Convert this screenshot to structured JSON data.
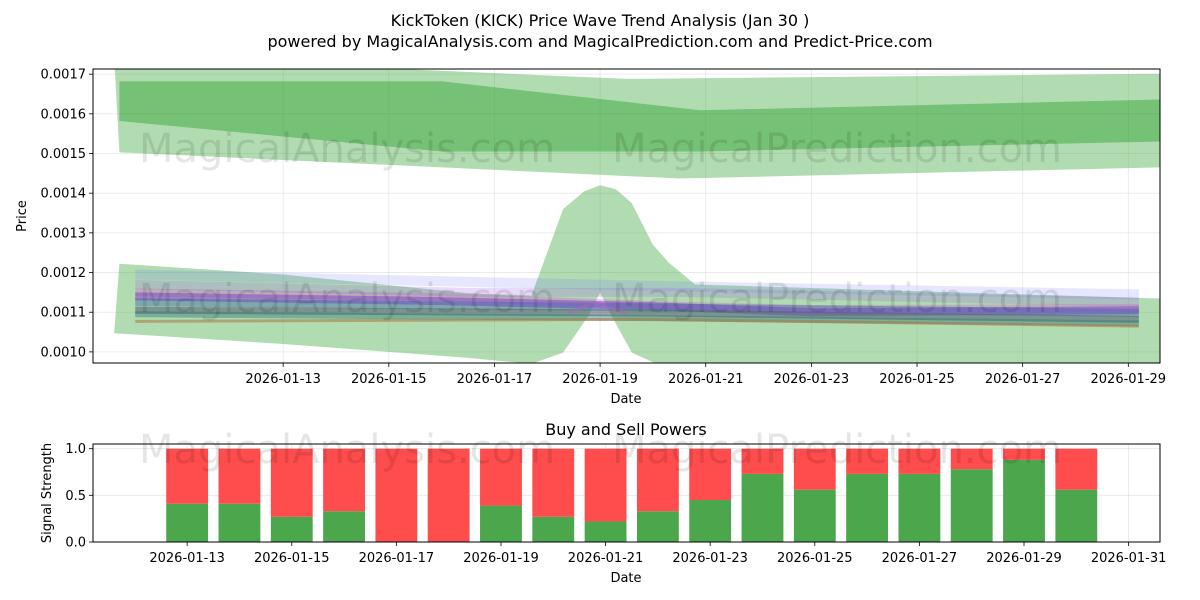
{
  "title_line1": "KickToken (KICK) Price Wave Trend Analysis (Jan 30 )",
  "title_line2": "powered by MagicalAnalysis.com and MagicalPrediction.com and Predict-Price.com",
  "watermarks": [
    "MagicalAnalysis.com",
    "MagicalPrediction.com"
  ],
  "chart_data": [
    {
      "type": "area",
      "title": "",
      "xlabel": "Date",
      "ylabel": "Price",
      "xlim": [
        -1.6,
        18.6
      ],
      "ylim": [
        0.000972,
        0.001713
      ],
      "xtick_labels": [
        "2026-01-13",
        "2026-01-15",
        "2026-01-17",
        "2026-01-19",
        "2026-01-21",
        "2026-01-23",
        "2026-01-25",
        "2026-01-27",
        "2026-01-29"
      ],
      "xtick_positions": [
        2,
        4,
        6,
        8,
        10,
        12,
        14,
        16,
        18
      ],
      "ytick_labels": [
        "0.0010",
        "0.0011",
        "0.0012",
        "0.0013",
        "0.0014",
        "0.0015",
        "0.0016",
        "0.0017"
      ],
      "ytick_values": [
        0.001,
        0.0011,
        0.0012,
        0.0013,
        0.0014,
        0.0015,
        0.0016,
        0.0017
      ],
      "grid": true,
      "colors": {
        "green_light": "#2ca02c",
        "green_dark": "#2ca02c"
      },
      "bands": [
        {
          "name": "upper-outer-band",
          "opacity": 0.37,
          "upper": [
            [
              -1.2,
              0.001745
            ],
            [
              8.5,
              0.001688
            ],
            [
              20.2,
              0.001703
            ]
          ],
          "lower": [
            [
              -1.1,
              0.001503
            ],
            [
              9.5,
              0.001437
            ],
            [
              20.2,
              0.00147
            ]
          ]
        },
        {
          "name": "upper-inner-band",
          "opacity": 0.45,
          "upper": [
            [
              -1.1,
              0.001682
            ],
            [
              5.0,
              0.001682
            ],
            [
              9.9,
              0.001609
            ],
            [
              20.2,
              0.001641
            ]
          ],
          "lower": [
            [
              -1.1,
              0.001582
            ],
            [
              5.0,
              0.001505
            ],
            [
              9.9,
              0.001505
            ],
            [
              20.2,
              0.001535
            ]
          ]
        },
        {
          "name": "lower-wave-band",
          "opacity": 0.37,
          "upper": [
            [
              -1.1,
              0.001222
            ],
            [
              2.0,
              0.001195
            ],
            [
              5.5,
              0.001148
            ],
            [
              6.7,
              0.001142
            ],
            [
              7.3,
              0.00136
            ],
            [
              7.7,
              0.001405
            ],
            [
              8.0,
              0.00142
            ],
            [
              8.3,
              0.00141
            ],
            [
              8.6,
              0.001375
            ],
            [
              9.0,
              0.00127
            ],
            [
              9.3,
              0.001225
            ],
            [
              9.8,
              0.00117
            ],
            [
              20.2,
              0.001128
            ]
          ],
          "lower": [
            [
              -1.2,
              0.001047
            ],
            [
              2.0,
              0.00102
            ],
            [
              5.5,
              0.000985
            ],
            [
              6.7,
              0.00097
            ],
            [
              7.3,
              0.000998
            ],
            [
              7.8,
              0.001095
            ],
            [
              8.0,
              0.00115
            ],
            [
              8.2,
              0.001095
            ],
            [
              8.6,
              0.000998
            ],
            [
              9.1,
              0.000968
            ],
            [
              20.2,
              0.000968
            ]
          ]
        }
      ],
      "wave_lines": [
        {
          "color": "#7777ff",
          "opacity": 0.18,
          "width": 10,
          "points": [
            [
              -0.8,
              0.001195
            ],
            [
              9.5,
              0.001165
            ],
            [
              18.2,
              0.001145
            ]
          ]
        },
        {
          "color": "#9955ee",
          "opacity": 0.22,
          "width": 9,
          "points": [
            [
              -0.8,
              0.00117
            ],
            [
              5.5,
              0.00115
            ],
            [
              9.5,
              0.00115
            ],
            [
              18.2,
              0.001125
            ]
          ]
        },
        {
          "color": "#cc44cc",
          "opacity": 0.28,
          "width": 8,
          "points": [
            [
              -0.8,
              0.00115
            ],
            [
              5.0,
              0.001138
            ],
            [
              9.0,
              0.001118
            ],
            [
              12.0,
              0.001108
            ],
            [
              18.2,
              0.00111
            ]
          ]
        },
        {
          "color": "#8844cc",
          "opacity": 0.55,
          "width": 8,
          "points": [
            [
              -0.8,
              0.00114
            ],
            [
              5.0,
              0.001128
            ],
            [
              9.0,
              0.001115
            ],
            [
              12.0,
              0.0011
            ],
            [
              18.2,
              0.001105
            ]
          ]
        },
        {
          "color": "#4466aa",
          "opacity": 0.45,
          "width": 8,
          "points": [
            [
              -0.8,
              0.001125
            ],
            [
              9.0,
              0.001112
            ],
            [
              18.2,
              0.001098
            ]
          ]
        },
        {
          "color": "#556677",
          "opacity": 0.6,
          "width": 7,
          "points": [
            [
              -0.8,
              0.001105
            ],
            [
              9.0,
              0.001098
            ],
            [
              18.2,
              0.001082
            ]
          ]
        },
        {
          "color": "#337777",
          "opacity": 0.45,
          "width": 6,
          "points": [
            [
              -0.8,
              0.001095
            ],
            [
              9.0,
              0.001085
            ],
            [
              18.2,
              0.001072
            ]
          ]
        },
        {
          "color": "#aa7744",
          "opacity": 0.55,
          "width": 3,
          "points": [
            [
              -0.8,
              0.001077
            ],
            [
              9.0,
              0.001082
            ],
            [
              18.2,
              0.001065
            ]
          ]
        },
        {
          "color": "#aa66bb",
          "opacity": 0.55,
          "width": 3,
          "points": [
            [
              7.4,
              0.001098
            ],
            [
              7.9,
              0.001125
            ],
            [
              8.5,
              0.001095
            ]
          ]
        }
      ]
    },
    {
      "type": "bar",
      "title": "Buy and Sell Powers",
      "xlabel": "Date",
      "ylabel": "Signal Strength",
      "ylim": [
        0,
        1.05
      ],
      "xlim": [
        -1.8,
        18.6
      ],
      "ytick_labels": [
        "0.0",
        "0.5",
        "1.0"
      ],
      "ytick_values": [
        0,
        0.5,
        1.0
      ],
      "xtick_labels": [
        "2026-01-13",
        "2026-01-15",
        "2026-01-17",
        "2026-01-19",
        "2026-01-21",
        "2026-01-23",
        "2026-01-25",
        "2026-01-27",
        "2026-01-29",
        "2026-01-31"
      ],
      "xtick_positions": [
        0,
        2,
        4,
        6,
        8,
        10,
        12,
        14,
        16,
        18
      ],
      "categories": [
        "2026-01-13",
        "2026-01-14",
        "2026-01-15",
        "2026-01-16",
        "2026-01-17",
        "2026-01-18",
        "2026-01-19",
        "2026-01-20",
        "2026-01-21",
        "2026-01-22",
        "2026-01-23",
        "2026-01-24",
        "2026-01-25",
        "2026-01-26",
        "2026-01-27",
        "2026-01-28",
        "2026-01-29",
        "2026-01-30"
      ],
      "colors": {
        "buy": "#4ca64c",
        "sell": "#ff4c4c"
      },
      "series": [
        {
          "name": "Buy",
          "values": [
            0.41,
            0.41,
            0.27,
            0.33,
            0.0,
            0.0,
            0.39,
            0.27,
            0.22,
            0.33,
            0.45,
            0.73,
            0.56,
            0.73,
            0.73,
            0.78,
            0.88,
            0.56
          ]
        },
        {
          "name": "Sell",
          "values": [
            0.59,
            0.59,
            0.73,
            0.67,
            1.0,
            1.0,
            0.61,
            0.73,
            0.78,
            0.67,
            0.55,
            0.27,
            0.44,
            0.27,
            0.27,
            0.22,
            0.12,
            0.44
          ]
        }
      ]
    }
  ]
}
